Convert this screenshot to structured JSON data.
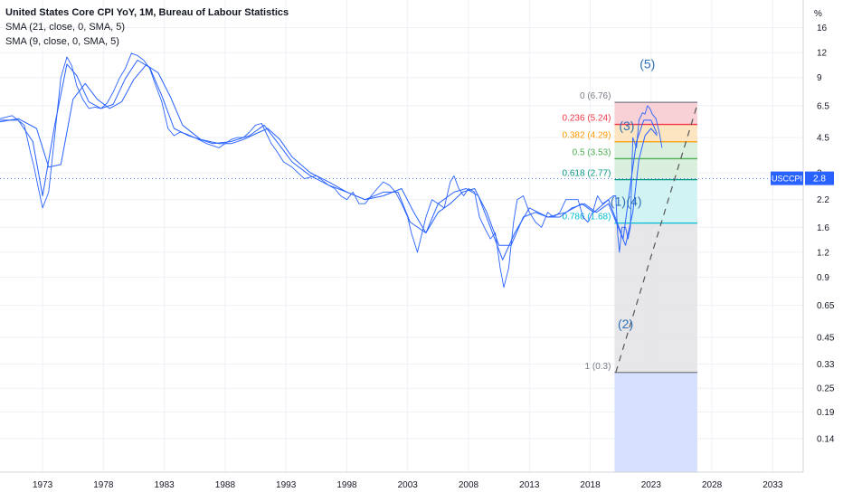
{
  "legend": {
    "title": "United States Core CPI YoY, 1M, Bureau of Labour Statistics",
    "sma21": "SMA (21, close, 0, SMA, 5)",
    "sma9": "SMA (9, close, 0, SMA, 5)"
  },
  "axis": {
    "unit_label": "%",
    "price_tag_symbol": "USCCPI",
    "price_tag_value": "2.8"
  },
  "colors": {
    "line": "#2962ff",
    "grid": "#eef1f6",
    "zone_red": "#f7c9cf",
    "zone_orange": "#fbe0b5",
    "zone_green": "#d5ecd9",
    "zone_teal": "#c9f1f1",
    "zone_gray": "#e3e3e6",
    "zone_blue": "#cfdcff",
    "wave_label": "#2f6fb6"
  },
  "chart_data": {
    "type": "line",
    "title": "United States Core CPI YoY, 1M, Bureau of Labour Statistics",
    "xlabel": "",
    "ylabel": "%",
    "y_scale": "log",
    "xlim": [
      1969.5,
      2035.5
    ],
    "ylim": [
      0.095,
      22
    ],
    "x_ticks": [
      1973,
      1978,
      1983,
      1988,
      1993,
      1998,
      2003,
      2008,
      2013,
      2018,
      2023,
      2028,
      2033
    ],
    "y_ticks": [
      16,
      12,
      9,
      6.5,
      4.5,
      3,
      2.2,
      1.6,
      1.2,
      0.9,
      0.65,
      0.45,
      0.33,
      0.25,
      0.19,
      0.14
    ],
    "grid": true,
    "series": [
      {
        "name": "United States Core CPI YoY",
        "x": [
          1969.5,
          1970.5,
          1971.5,
          1972.0,
          1972.3,
          1972.6,
          1973.0,
          1973.5,
          1974.0,
          1974.5,
          1975.0,
          1975.4,
          1975.8,
          1976.3,
          1976.8,
          1977.3,
          1977.8,
          1978.3,
          1978.8,
          1979.3,
          1979.8,
          1980.3,
          1980.8,
          1981.3,
          1981.8,
          1982.3,
          1982.8,
          1983.3,
          1983.8,
          1984.3,
          1984.8,
          1985.5,
          1986.5,
          1987.5,
          1988.0,
          1988.5,
          1989.0,
          1989.5,
          1990.0,
          1990.5,
          1991.0,
          1991.4,
          1991.8,
          1992.3,
          1992.8,
          1993.5,
          1994.5,
          1995.5,
          1996.5,
          1997.0,
          1997.5,
          1998.0,
          1998.5,
          1999.0,
          1999.5,
          2000.0,
          2000.5,
          2001.0,
          2001.5,
          2002.0,
          2002.5,
          2003.0,
          2003.3,
          2003.8,
          2004.5,
          2005.0,
          2005.5,
          2006.0,
          2006.5,
          2006.8,
          2007.2,
          2007.6,
          2008.0,
          2008.5,
          2008.9,
          2009.3,
          2009.8,
          2010.2,
          2010.6,
          2010.9,
          2011.3,
          2011.7,
          2012.0,
          2012.5,
          2013.0,
          2013.5,
          2014.0,
          2014.5,
          2015.0,
          2015.5,
          2016.0,
          2016.5,
          2017.0,
          2017.4,
          2017.8,
          2018.2,
          2018.6,
          2019.0,
          2019.5,
          2019.9,
          2020.1,
          2020.25,
          2020.4,
          2020.6,
          2020.9,
          2021.1,
          2021.3,
          2021.5,
          2021.8,
          2022.0,
          2022.3,
          2022.5,
          2022.7,
          2022.9,
          2023.1,
          2023.4,
          2023.7,
          2023.9
        ],
        "values": [
          5.6,
          5.8,
          5.2,
          3.8,
          3.2,
          2.6,
          2.0,
          2.4,
          4.6,
          9.0,
          11.4,
          10.3,
          8.2,
          7.0,
          6.3,
          6.4,
          6.3,
          6.7,
          7.6,
          8.9,
          10.0,
          11.9,
          11.6,
          11.0,
          10.0,
          8.2,
          6.8,
          5.0,
          4.6,
          4.8,
          4.7,
          4.5,
          4.2,
          4.0,
          4.2,
          4.4,
          4.5,
          4.5,
          4.8,
          5.2,
          5.3,
          4.7,
          4.2,
          3.8,
          3.4,
          3.2,
          2.8,
          2.9,
          2.6,
          2.5,
          2.3,
          2.2,
          2.4,
          2.1,
          2.1,
          2.3,
          2.5,
          2.7,
          2.6,
          2.4,
          2.1,
          1.8,
          1.5,
          1.2,
          1.8,
          2.2,
          2.1,
          2.0,
          2.7,
          2.9,
          2.5,
          2.3,
          2.5,
          2.4,
          1.8,
          1.6,
          1.4,
          1.5,
          1.0,
          0.8,
          1.0,
          1.7,
          2.2,
          2.3,
          1.9,
          1.7,
          1.6,
          1.9,
          1.8,
          1.9,
          2.2,
          2.2,
          2.2,
          1.8,
          1.7,
          1.9,
          2.3,
          2.1,
          2.2,
          2.3,
          2.3,
          1.5,
          1.2,
          1.6,
          1.6,
          1.4,
          1.6,
          4.5,
          4.0,
          5.5,
          6.0,
          5.9,
          6.5,
          6.3,
          5.9,
          5.6,
          4.7,
          4.0
        ]
      },
      {
        "name": "SMA (21, close, 0, SMA, 5)",
        "x": [
          1969.5,
          1971.0,
          1972.5,
          1973.5,
          1974.5,
          1975.5,
          1976.5,
          1977.5,
          1978.5,
          1979.5,
          1980.5,
          1981.5,
          1982.5,
          1983.5,
          1984.5,
          1986.0,
          1987.5,
          1988.5,
          1989.5,
          1990.5,
          1991.5,
          1992.5,
          1993.5,
          1995.0,
          1996.5,
          1998.0,
          1999.5,
          2001.0,
          2002.5,
          2003.5,
          2004.5,
          2005.5,
          2006.5,
          2007.5,
          2008.5,
          2009.5,
          2010.5,
          2011.5,
          2012.5,
          2013.5,
          2014.5,
          2015.5,
          2016.5,
          2017.5,
          2018.5,
          2019.5,
          2020.3,
          2020.9,
          2021.5,
          2022.0,
          2022.5,
          2023.0,
          2023.5
        ],
        "values": [
          5.4,
          5.6,
          5.0,
          3.2,
          3.3,
          7.0,
          8.4,
          7.0,
          6.3,
          6.8,
          8.8,
          10.4,
          9.5,
          7.2,
          5.2,
          4.4,
          4.2,
          4.2,
          4.4,
          4.7,
          5.0,
          4.4,
          3.6,
          3.0,
          2.7,
          2.4,
          2.2,
          2.3,
          2.5,
          1.9,
          1.5,
          1.9,
          2.1,
          2.4,
          2.5,
          1.9,
          1.3,
          1.3,
          1.8,
          1.9,
          1.8,
          1.8,
          2.0,
          2.1,
          1.9,
          2.1,
          1.6,
          1.3,
          1.9,
          3.5,
          4.6,
          5.0,
          4.6
        ]
      },
      {
        "name": "SMA (9, close, 0, SMA, 5)",
        "x": [
          1969.5,
          1971.0,
          1972.2,
          1973.0,
          1974.0,
          1975.0,
          1975.8,
          1976.8,
          1977.8,
          1978.8,
          1979.8,
          1980.8,
          1981.8,
          1982.8,
          1983.8,
          1985.0,
          1987.0,
          1988.5,
          1990.0,
          1991.2,
          1992.5,
          1993.5,
          1995.0,
          1996.5,
          1998.0,
          1999.5,
          2001.0,
          2002.2,
          2003.2,
          2004.5,
          2005.5,
          2006.8,
          2007.8,
          2008.8,
          2009.8,
          2010.8,
          2011.8,
          2013.0,
          2014.5,
          2016.0,
          2017.3,
          2018.3,
          2019.5,
          2020.2,
          2020.7,
          2021.3,
          2021.8,
          2022.4,
          2023.0,
          2023.5
        ],
        "values": [
          5.5,
          5.5,
          4.3,
          2.3,
          5.2,
          10.5,
          9.2,
          6.8,
          6.3,
          6.6,
          8.9,
          11.0,
          10.1,
          7.3,
          5.0,
          4.6,
          4.2,
          4.3,
          4.6,
          5.2,
          4.1,
          3.4,
          2.9,
          2.6,
          2.4,
          2.2,
          2.4,
          2.4,
          1.7,
          1.5,
          2.1,
          2.4,
          2.5,
          2.3,
          1.6,
          1.1,
          1.5,
          2.0,
          1.8,
          1.9,
          2.1,
          1.9,
          2.2,
          1.7,
          1.4,
          2.6,
          4.3,
          5.5,
          5.5,
          4.7
        ]
      }
    ],
    "fib_retracement": {
      "x_start": 2020.0,
      "x_end": 2026.8,
      "levels": [
        {
          "ratio": "0",
          "value": 6.76,
          "label": "0 (6.76)",
          "color": "#787b86",
          "zone": "zone_red"
        },
        {
          "ratio": "0.236",
          "value": 5.24,
          "label": "0.236 (5.24)",
          "color": "#f23645",
          "zone": "zone_orange"
        },
        {
          "ratio": "0.382",
          "value": 4.29,
          "label": "0.382 (4.29)",
          "color": "#ff9800",
          "zone": "zone_green"
        },
        {
          "ratio": "0.5",
          "value": 3.53,
          "label": "0.5 (3.53)",
          "color": "#4caf50",
          "zone": "zone_green"
        },
        {
          "ratio": "0.618",
          "value": 2.77,
          "label": "0.618 (2.77)",
          "color": "#089981",
          "zone": "zone_teal"
        },
        {
          "ratio": "0.786",
          "value": 1.68,
          "label": "0.786 (1.68)",
          "color": "#00bcd4",
          "zone": "zone_gray"
        },
        {
          "ratio": "1",
          "value": 0.3,
          "label": "1 (0.3)",
          "color": "#787b86",
          "zone": "zone_blue"
        }
      ]
    },
    "trend_line": {
      "x": [
        2020.1,
        2026.8
      ],
      "values": [
        0.3,
        6.6
      ]
    },
    "wave_labels": [
      {
        "text": "(1)",
        "x": 2020.3,
        "y": 2.05
      },
      {
        "text": "(2)",
        "x": 2020.9,
        "y": 0.5
      },
      {
        "text": "(3)",
        "x": 2021.0,
        "y": 4.9
      },
      {
        "text": "(4)",
        "x": 2021.6,
        "y": 2.05
      },
      {
        "text": "(5)",
        "x": 2022.7,
        "y": 10.0
      }
    ]
  }
}
